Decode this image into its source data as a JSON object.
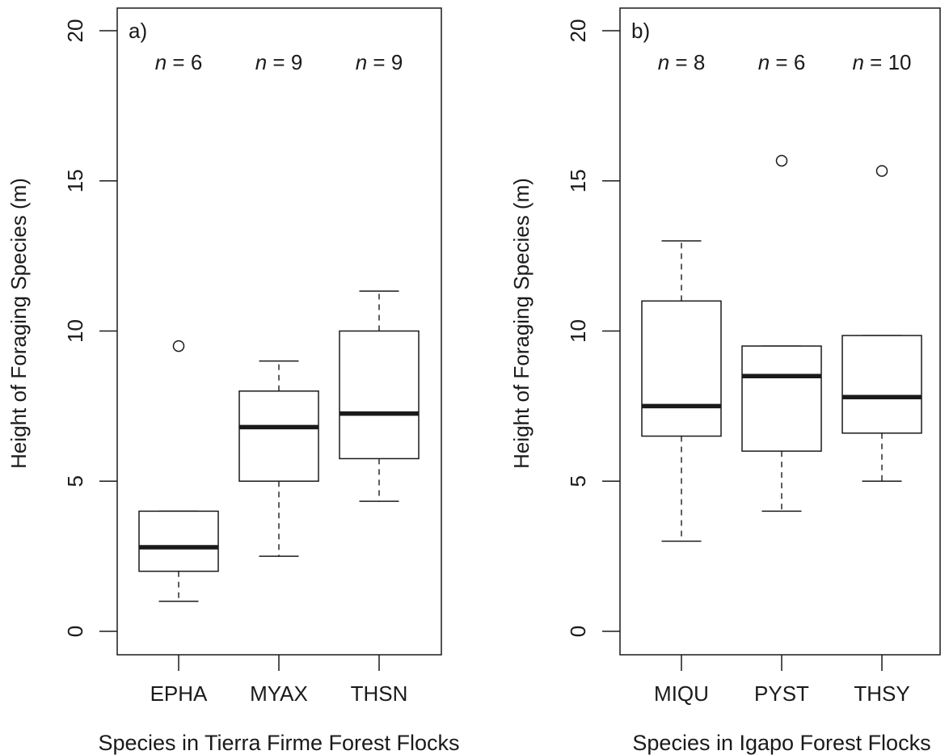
{
  "chart_data": [
    {
      "type": "box",
      "panel_label": "a)",
      "xlabel": "Species in Tierra Firme Forest Flocks",
      "ylabel": "Height of Foraging Species (m)",
      "ylim": [
        0,
        20
      ],
      "yticks": [
        "0",
        "5",
        "10",
        "15",
        "20"
      ],
      "grid": false,
      "categories": [
        "EPHA",
        "MYAX",
        "THSN"
      ],
      "n_labels": [
        "6",
        "9",
        "9"
      ],
      "boxes": [
        {
          "whisker_low": 1,
          "q1": 2,
          "median": 2.8,
          "q3": 4,
          "whisker_high": 4,
          "outliers": [
            9.5
          ]
        },
        {
          "whisker_low": 2.5,
          "q1": 5,
          "median": 6.8,
          "q3": 8,
          "whisker_high": 9,
          "outliers": []
        },
        {
          "whisker_low": 4.33,
          "q1": 5.75,
          "median": 7.25,
          "q3": 10,
          "whisker_high": 11.33,
          "outliers": []
        }
      ]
    },
    {
      "type": "box",
      "panel_label": "b)",
      "xlabel": "Species in Igapo Forest Flocks",
      "ylabel": "Height of Foraging Species (m)",
      "ylim": [
        0,
        20
      ],
      "yticks": [
        "0",
        "5",
        "10",
        "15",
        "20"
      ],
      "grid": false,
      "categories": [
        "MIQU",
        "PYST",
        "THSY"
      ],
      "n_labels": [
        "8",
        "6",
        "10"
      ],
      "boxes": [
        {
          "whisker_low": 3,
          "q1": 6.5,
          "median": 7.5,
          "q3": 11,
          "whisker_high": 13,
          "outliers": []
        },
        {
          "whisker_low": 4,
          "q1": 6,
          "median": 8.5,
          "q3": 9.5,
          "whisker_high": 9.5,
          "outliers": [
            15.67
          ]
        },
        {
          "whisker_low": 5,
          "q1": 6.6,
          "median": 7.8,
          "q3": 9.85,
          "whisker_high": 9.85,
          "outliers": [
            15.33
          ]
        }
      ]
    }
  ],
  "n_prefix": "n",
  "n_eq": " = "
}
